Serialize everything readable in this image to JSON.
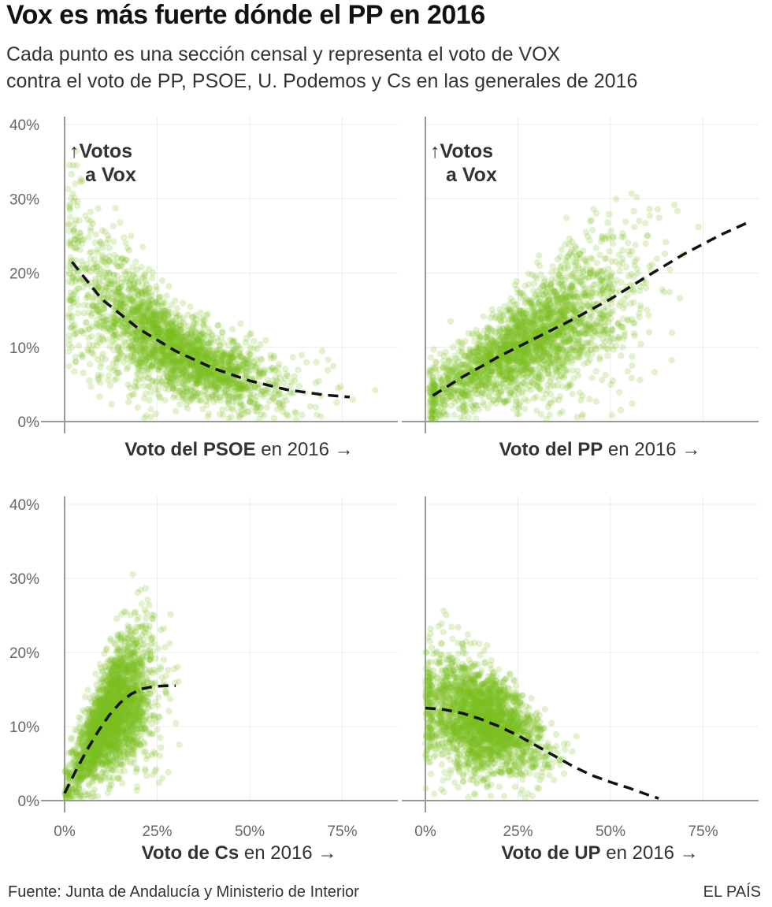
{
  "title": "Vox es más fuerte dónde el PP en 2016",
  "subtitle": {
    "line1": "Cada punto es una sección censal y representa el voto de VOX",
    "line2": "contra el voto de PP, PSOE, U. Podemos y Cs en las generales de 2016"
  },
  "footer": {
    "source": "Fuente: Junta de Andalucía y Ministerio de Interior",
    "brand": "EL PAÍS"
  },
  "colors": {
    "points": "#7dbf1f",
    "trend": "#111111",
    "grid": "#ececec",
    "axis": "#999999",
    "text": "#333333"
  },
  "chart_data": [
    {
      "type": "scatter",
      "panel": "top-left",
      "xlabel_bold": "Voto del PSOE",
      "xlabel_rest": " en 2016 →",
      "annotation": [
        "↑Votos",
        "a Vox"
      ],
      "xlim": [
        0,
        0.9
      ],
      "ylim": [
        0,
        0.4
      ],
      "xticks": [
        "0%",
        "25%",
        "50%",
        "75%"
      ],
      "yticks": [
        "0%",
        "10%",
        "20%",
        "30%",
        "40%"
      ],
      "point_cloud": {
        "count": 2600,
        "x_center": 0.29,
        "x_spread": 0.14,
        "x_min": 0.01,
        "x_max": 0.86
      },
      "trend": [
        [
          0.02,
          0.215
        ],
        [
          0.1,
          0.165
        ],
        [
          0.2,
          0.125
        ],
        [
          0.3,
          0.095
        ],
        [
          0.4,
          0.072
        ],
        [
          0.5,
          0.055
        ],
        [
          0.6,
          0.043
        ],
        [
          0.7,
          0.036
        ],
        [
          0.77,
          0.033
        ]
      ]
    },
    {
      "type": "scatter",
      "panel": "top-right",
      "xlabel_bold": "Voto del PP",
      "xlabel_rest": " en 2016 →",
      "annotation": [
        "↑Votos",
        "a Vox"
      ],
      "xlim": [
        0,
        0.9
      ],
      "ylim": [
        0,
        0.4
      ],
      "xticks": [
        "0%",
        "25%",
        "50%",
        "75%"
      ],
      "yticks": [
        "0%",
        "10%",
        "20%",
        "30%",
        "40%"
      ],
      "point_cloud": {
        "count": 2600,
        "x_center": 0.28,
        "x_spread": 0.14,
        "x_min": 0.01,
        "x_max": 0.88
      },
      "trend": [
        [
          0.02,
          0.035
        ],
        [
          0.1,
          0.06
        ],
        [
          0.2,
          0.088
        ],
        [
          0.3,
          0.113
        ],
        [
          0.4,
          0.138
        ],
        [
          0.5,
          0.165
        ],
        [
          0.6,
          0.196
        ],
        [
          0.7,
          0.226
        ],
        [
          0.8,
          0.252
        ],
        [
          0.88,
          0.27
        ]
      ]
    },
    {
      "type": "scatter",
      "panel": "bottom-left",
      "xlabel_bold": "Voto de Cs",
      "xlabel_rest": " en 2016 →",
      "annotation": [],
      "xlim": [
        0,
        0.9
      ],
      "ylim": [
        0,
        0.4
      ],
      "xticks": [
        "0%",
        "25%",
        "50%",
        "75%"
      ],
      "yticks": [
        "0%",
        "10%",
        "20%",
        "30%",
        "40%"
      ],
      "point_cloud": {
        "count": 2600,
        "x_center": 0.13,
        "x_spread": 0.055,
        "x_min": 0.0,
        "x_max": 0.33
      },
      "trend": [
        [
          0.0,
          0.01
        ],
        [
          0.03,
          0.04
        ],
        [
          0.06,
          0.068
        ],
        [
          0.09,
          0.093
        ],
        [
          0.12,
          0.115
        ],
        [
          0.15,
          0.132
        ],
        [
          0.18,
          0.144
        ],
        [
          0.21,
          0.151
        ],
        [
          0.24,
          0.154
        ],
        [
          0.27,
          0.155
        ],
        [
          0.3,
          0.155
        ]
      ]
    },
    {
      "type": "scatter",
      "panel": "bottom-right",
      "xlabel_bold": "Voto de UP",
      "xlabel_rest": " en 2016 →",
      "annotation": [],
      "xlim": [
        0,
        0.9
      ],
      "ylim": [
        0,
        0.4
      ],
      "xticks": [
        "0%",
        "25%",
        "50%",
        "75%"
      ],
      "yticks": [
        "0%",
        "10%",
        "20%",
        "30%",
        "40%"
      ],
      "point_cloud": {
        "count": 2600,
        "x_center": 0.15,
        "x_spread": 0.08,
        "x_min": 0.0,
        "x_max": 0.78
      },
      "trend": [
        [
          0.0,
          0.125
        ],
        [
          0.05,
          0.123
        ],
        [
          0.1,
          0.118
        ],
        [
          0.15,
          0.11
        ],
        [
          0.2,
          0.1
        ],
        [
          0.25,
          0.088
        ],
        [
          0.3,
          0.074
        ],
        [
          0.35,
          0.06
        ],
        [
          0.4,
          0.046
        ],
        [
          0.45,
          0.034
        ],
        [
          0.5,
          0.025
        ],
        [
          0.55,
          0.017
        ],
        [
          0.6,
          0.008
        ],
        [
          0.63,
          0.003
        ]
      ]
    }
  ]
}
